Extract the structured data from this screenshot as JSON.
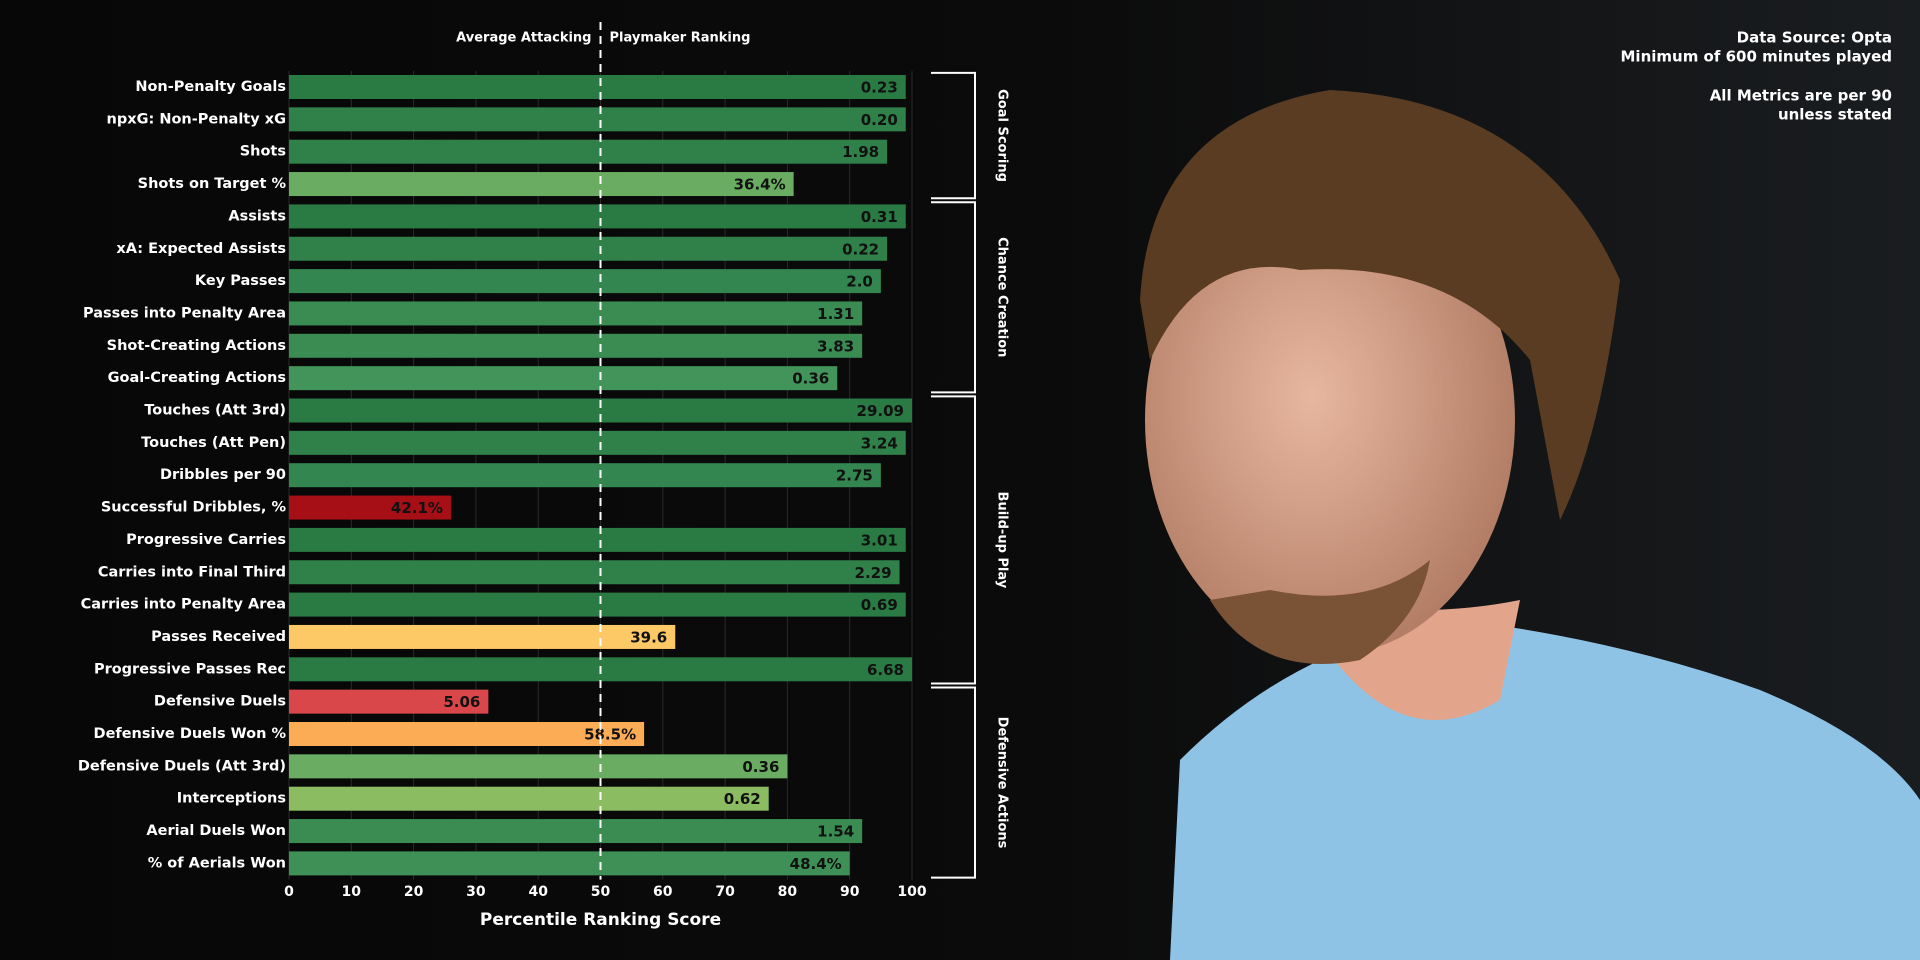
{
  "chart_data": {
    "type": "bar",
    "orientation": "horizontal",
    "categories": [
      "Non-Penalty Goals",
      "npxG: Non-Penalty xG",
      "Shots",
      "Shots on Target %",
      "Assists",
      "xA: Expected Assists",
      "Key Passes",
      "Passes into Penalty Area",
      "Shot-Creating Actions",
      "Goal-Creating Actions",
      "Touches (Att 3rd)",
      "Touches (Att Pen)",
      "Dribbles per 90",
      "Successful Dribbles, %",
      "Progressive Carries",
      "Carries into Final Third",
      "Carries into Penalty Area",
      "Passes Received",
      "Progressive Passes Rec",
      "Defensive Duels",
      "Defensive Duels Won %",
      "Defensive Duels (Att 3rd)",
      "Interceptions",
      "Aerial Duels Won",
      "% of Aerials Won"
    ],
    "values": [
      99,
      99,
      96,
      81,
      99,
      96,
      95,
      92,
      92,
      88,
      100,
      99,
      95,
      26,
      99,
      98,
      99,
      62,
      100,
      32,
      57,
      80,
      77,
      92,
      90
    ],
    "data_labels": [
      "0.23",
      "0.20",
      "1.98",
      "36.4%",
      "0.31",
      "0.22",
      "2.0",
      "1.31",
      "3.83",
      "0.36",
      "29.09",
      "3.24",
      "2.75",
      "42.1%",
      "3.01",
      "2.29",
      "0.69",
      "39.6",
      "6.68",
      "5.06",
      "58.5%",
      "0.36",
      "0.62",
      "1.54",
      "48.4%"
    ],
    "colors": [
      "#2a7a44",
      "#2f8049",
      "#2f8049",
      "#6aad62",
      "#2a7a44",
      "#2f8049",
      "#338650",
      "#3a8c53",
      "#3a8c53",
      "#43945a",
      "#2a7a44",
      "#2f8049",
      "#338650",
      "#a50f15",
      "#2a7a44",
      "#2f8049",
      "#2a7a44",
      "#fdc866",
      "#2a7a44",
      "#d9474a",
      "#fdac56",
      "#6aad62",
      "#8cbc62",
      "#3a8c53",
      "#3f9057"
    ],
    "xlim": [
      0,
      100
    ],
    "xticks": [
      0,
      10,
      20,
      30,
      40,
      50,
      60,
      70,
      80,
      90,
      100
    ],
    "xlabel": "Percentile Ranking Score",
    "reference": 50,
    "reference_left_label": "Average Attacking",
    "reference_right_label": "Playmaker Ranking",
    "groups": [
      {
        "name": "Goal Scoring",
        "size": 4
      },
      {
        "name": "Chance Creation",
        "size": 6
      },
      {
        "name": "Build-up Play",
        "size": 9
      },
      {
        "name": "Defensive Actions",
        "size": 6
      }
    ],
    "notes": [
      "Data Source: Opta",
      "Minimum of 600 minutes played",
      "All Metrics are per 90",
      "unless stated"
    ],
    "grid": true
  }
}
